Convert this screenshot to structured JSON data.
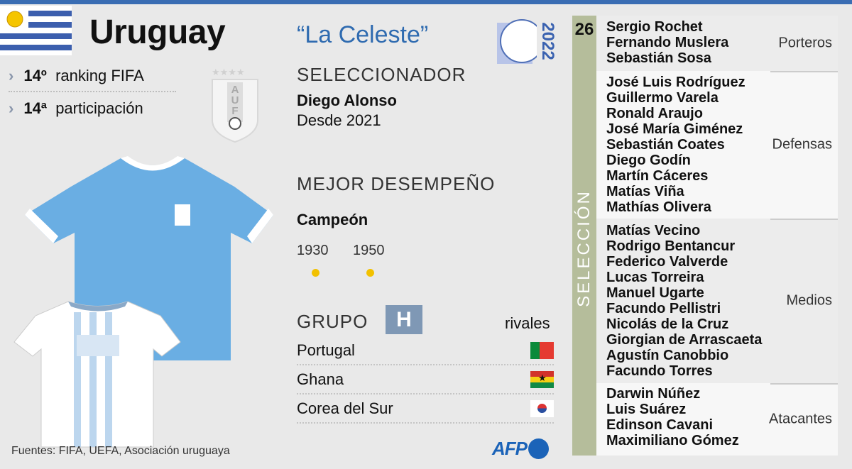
{
  "header": {
    "country": "Uruguay",
    "nickname": "“La Celeste”",
    "logo_year": "2022"
  },
  "stats": [
    {
      "value": "14º",
      "label": "ranking FIFA"
    },
    {
      "value": "14ª",
      "label": "participación"
    }
  ],
  "crest_text": "AUF",
  "coach": {
    "heading": "SELECCIONADOR",
    "name": "Diego Alonso",
    "since": "Desde 2021"
  },
  "best": {
    "heading": "MEJOR DESEMPEÑO",
    "result": "Campeón",
    "years": [
      "1930",
      "1950"
    ]
  },
  "group": {
    "heading": "GRUPO",
    "letter": "H",
    "rivals_label": "rivales",
    "rivals": [
      {
        "name": "Portugal",
        "flag": "portugal-flag"
      },
      {
        "name": "Ghana",
        "flag": "ghana-flag"
      },
      {
        "name": "Corea del Sur",
        "flag": "south-korea-flag"
      }
    ]
  },
  "squad": {
    "label": "SELECCIÓN",
    "count": "26",
    "sections": [
      {
        "category": "Porteros",
        "players": [
          "Sergio Rochet",
          "Fernando Muslera",
          "Sebastián Sosa"
        ]
      },
      {
        "category": "Defensas",
        "players": [
          "José Luis Rodríguez",
          "Guillermo Varela",
          "Ronald Araujo",
          "José María Giménez",
          "Sebastián Coates",
          "Diego Godín",
          "Martín Cáceres",
          "Matías Viña",
          "Mathías Olivera"
        ]
      },
      {
        "category": "Medios",
        "players": [
          "Matías Vecino",
          "Rodrigo Bentancur",
          "Federico Valverde",
          "Lucas Torreira",
          "Manuel Ugarte",
          "Facundo Pellistri",
          "Nicolás de la Cruz",
          "Giorgian de Arrascaeta",
          "Agustín Canobbio",
          "Facundo Torres"
        ]
      },
      {
        "category": "Atacantes",
        "players": [
          "Darwin Núñez",
          "Luis Suárez",
          "Edinson Cavani",
          "Maximiliano Gómez"
        ]
      }
    ]
  },
  "footer": {
    "sources": "Fuentes: FIFA, UEFA, Asociación uruguaya",
    "brand": "AFP"
  },
  "colors": {
    "accent": "#2f6bb0",
    "top_bar": "#3a6db3",
    "squad_bar": "#b5bd9b",
    "group_box": "#7f98b5",
    "shirt_home": "#6aaee3",
    "title_dot": "#f2c100"
  }
}
